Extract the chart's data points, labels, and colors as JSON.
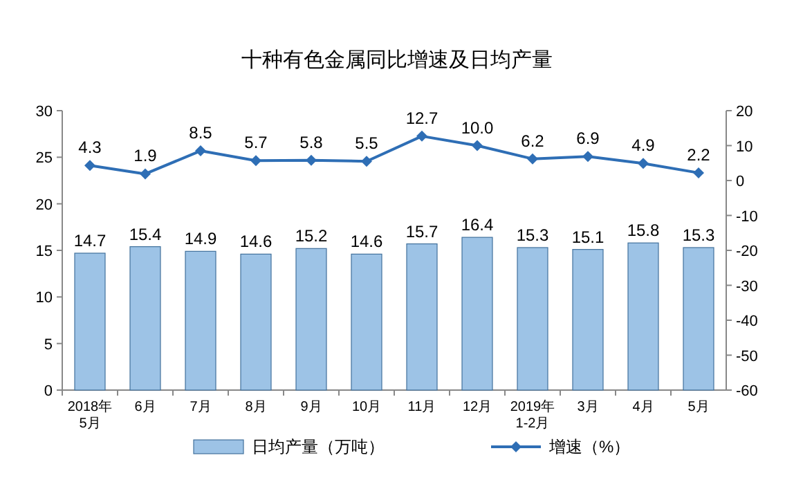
{
  "chart_data": {
    "type": "bar",
    "title": "十种有色金属同比增速及日均产量",
    "categories": [
      "2018年\n5月",
      "6月",
      "7月",
      "8月",
      "9月",
      "10月",
      "11月",
      "12月",
      "2019年\n1-2月",
      "3月",
      "4月",
      "5月"
    ],
    "series": [
      {
        "name": "日均产量（万吨）",
        "color": "#9dc3e6",
        "values": [
          14.7,
          15.4,
          14.9,
          14.6,
          15.2,
          14.6,
          15.7,
          16.4,
          15.3,
          15.1,
          15.8,
          15.3
        ]
      },
      {
        "name": "增速（%）",
        "type": "line",
        "axis": "y2",
        "color": "#2e6eb5",
        "values": [
          4.3,
          1.9,
          8.5,
          5.7,
          5.8,
          5.5,
          12.7,
          10.0,
          6.2,
          6.9,
          4.9,
          2.2
        ],
        "value_labels": [
          "4.3",
          "1.9",
          "8.5",
          "5.7",
          "5.8",
          "5.5",
          "12.7",
          "10.0",
          "6.2",
          "6.9",
          "4.9",
          "2.2"
        ]
      }
    ],
    "ylim": [
      0,
      30
    ],
    "yticks": [
      0,
      5,
      10,
      15,
      20,
      25,
      30
    ],
    "y2lim": [
      -60,
      20
    ],
    "y2ticks": [
      -60,
      -50,
      -40,
      -30,
      -20,
      -10,
      0,
      10,
      20
    ],
    "data_labels": true,
    "legend": "bottom",
    "grid": false,
    "marker": "diamond"
  }
}
